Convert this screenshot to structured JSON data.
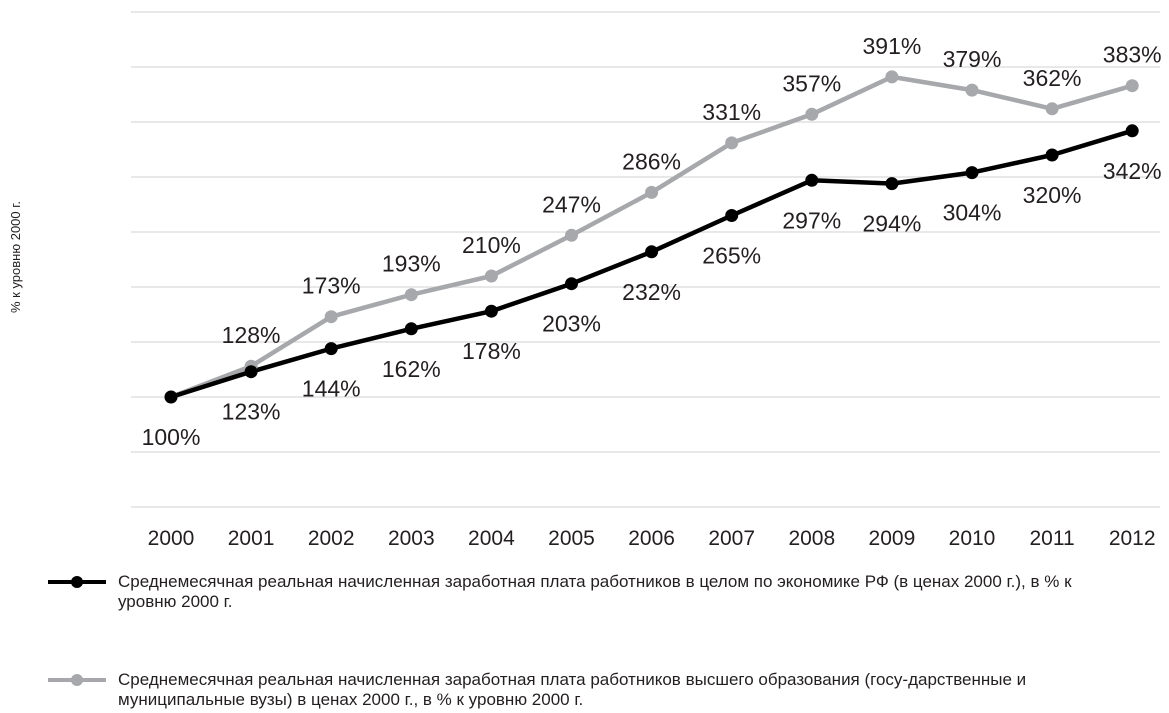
{
  "chart_data": {
    "type": "line",
    "title": "",
    "ylabel": "% к уровню 2000 г.",
    "xlabel": "",
    "categories": [
      "2000",
      "2001",
      "2002",
      "2003",
      "2004",
      "2005",
      "2006",
      "2007",
      "2008",
      "2009",
      "2010",
      "2011",
      "2012"
    ],
    "ylim": [
      0,
      450
    ],
    "grid": true,
    "legend_position": "bottom",
    "series": [
      {
        "name": "Среднемесячная реальная начисленная заработная плата работников в целом по экономике РФ (в ценах 2000 г.), в % к уровню 2000 г.",
        "color": "#000000",
        "values": [
          100,
          123,
          144,
          162,
          178,
          203,
          232,
          265,
          297,
          294,
          304,
          320,
          342
        ],
        "labels": [
          "100%",
          "123%",
          "144%",
          "162%",
          "178%",
          "203%",
          "232%",
          "265%",
          "297%",
          "294%",
          "304%",
          "320%",
          "342%"
        ]
      },
      {
        "name": "Среднемесячная реальная начисленная заработная плата работников высшего образования (госу-дарственные и муниципальные вузы) в ценах 2000 г., в % к уровню 2000 г.",
        "color": "#a6a8ab",
        "values": [
          100,
          128,
          173,
          193,
          210,
          247,
          286,
          331,
          357,
          391,
          379,
          362,
          383
        ],
        "labels": [
          "",
          "128%",
          "173%",
          "193%",
          "210%",
          "247%",
          "286%",
          "331%",
          "357%",
          "391%",
          "379%",
          "362%",
          "383%"
        ]
      }
    ]
  }
}
